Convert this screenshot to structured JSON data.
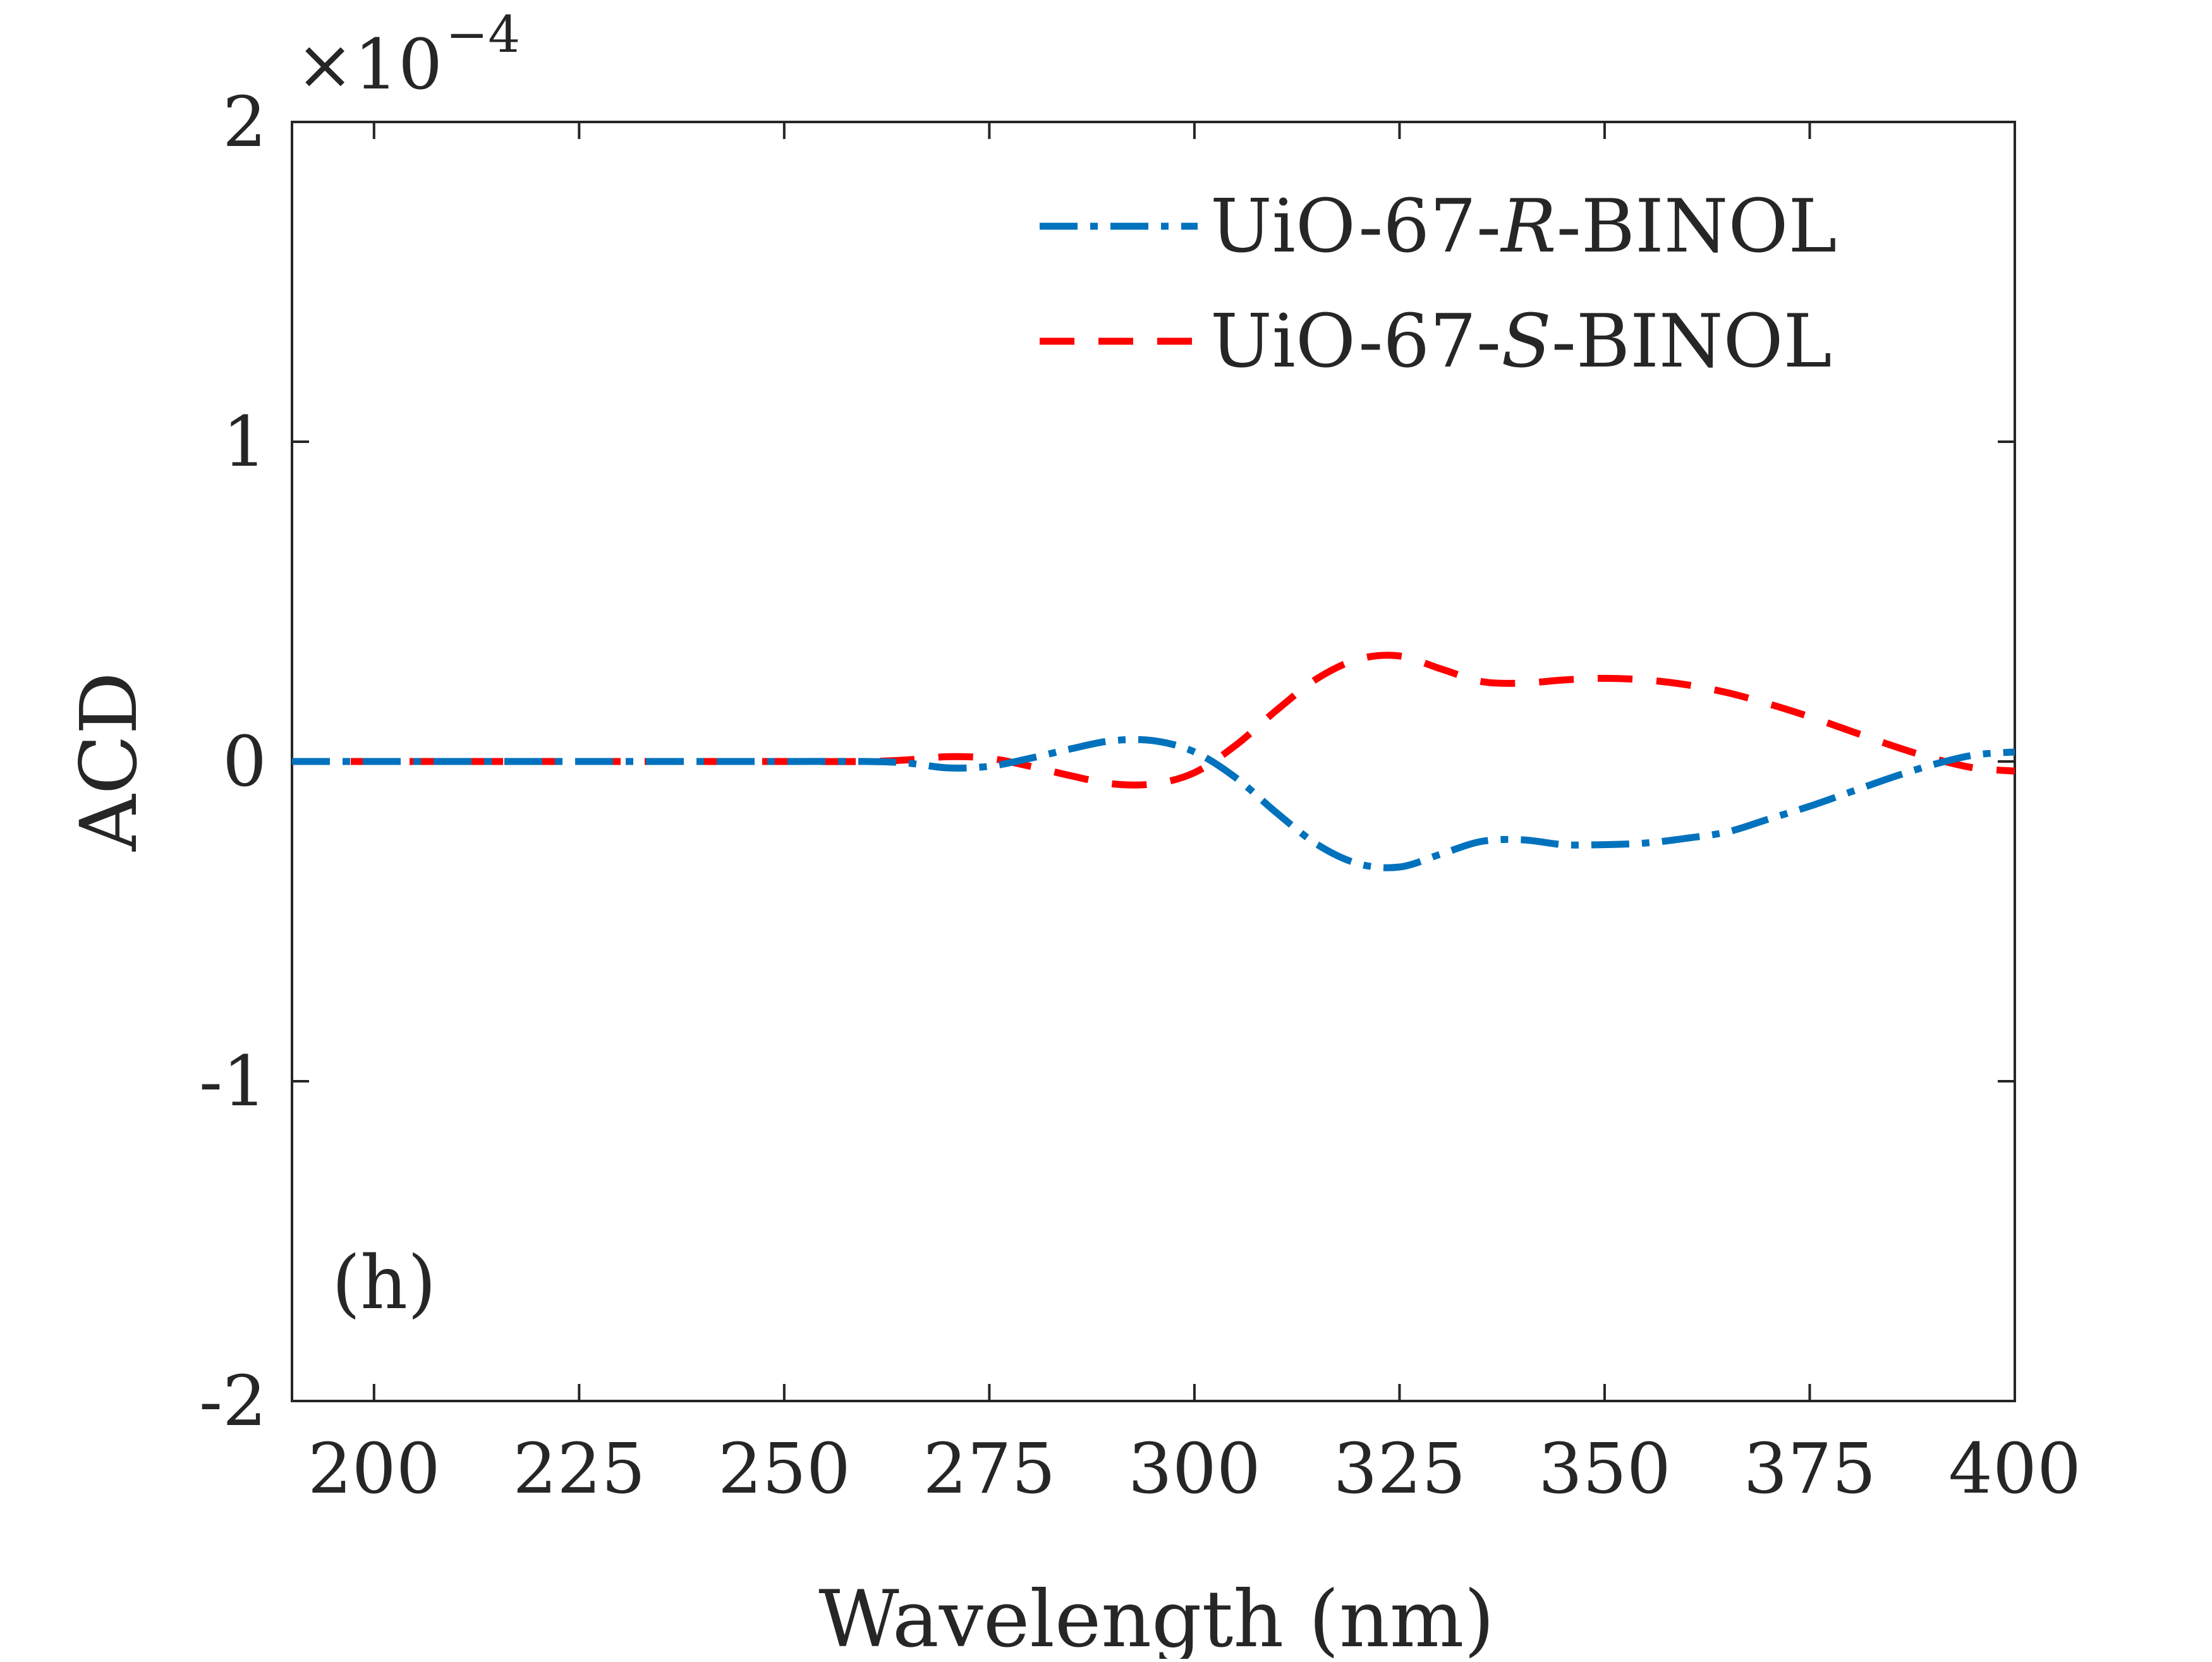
{
  "chart_data": {
    "type": "line",
    "title": "",
    "xlabel": "Wavelength (nm)",
    "ylabel": "ACD",
    "xlim": [
      190,
      400
    ],
    "ylim": [
      -2,
      2
    ],
    "y_multiplier": {
      "base": "×10",
      "exponent": "−4"
    },
    "x_ticks": [
      200,
      225,
      250,
      275,
      300,
      325,
      350,
      375,
      400
    ],
    "x_tick_labels": [
      "200",
      "225",
      "250",
      "275",
      "300",
      "325",
      "350",
      "375",
      "400"
    ],
    "y_ticks": [
      -2,
      -1,
      0,
      1,
      2
    ],
    "y_tick_labels": [
      "-2",
      "-1",
      "0",
      "1",
      "2"
    ],
    "grid": false,
    "legend_position": "top-right",
    "annotation": "(h)",
    "series": [
      {
        "name": "UiO-67-R-BINOL",
        "legend_prefix": "UiO-67-",
        "legend_italic": "R",
        "legend_suffix": "-BINOL",
        "color": "#0072BD",
        "dash": "dash-dot",
        "x": [
          190,
          200,
          210,
          220,
          230,
          240,
          250,
          260,
          265,
          270,
          275,
          280,
          285,
          290,
          295,
          300,
          305,
          310,
          315,
          320,
          325,
          330,
          335,
          340,
          345,
          350,
          355,
          360,
          365,
          370,
          375,
          380,
          385,
          390,
          395,
          400
        ],
        "y": [
          0,
          0,
          0,
          0,
          0,
          0,
          0,
          0,
          -0.005,
          -0.02,
          -0.015,
          0.01,
          0.04,
          0.065,
          0.065,
          0.03,
          -0.05,
          -0.16,
          -0.26,
          -0.32,
          -0.33,
          -0.29,
          -0.25,
          -0.245,
          -0.26,
          -0.26,
          -0.255,
          -0.24,
          -0.22,
          -0.18,
          -0.14,
          -0.095,
          -0.05,
          -0.01,
          0.02,
          0.03
        ]
      },
      {
        "name": "UiO-67-S-BINOL",
        "legend_prefix": "UiO-67-",
        "legend_italic": "S",
        "legend_suffix": "-BINOL",
        "color": "#FF0000",
        "dash": "dashed",
        "x": [
          190,
          200,
          210,
          220,
          230,
          240,
          250,
          260,
          265,
          270,
          275,
          280,
          285,
          290,
          295,
          300,
          305,
          310,
          315,
          320,
          325,
          330,
          335,
          340,
          345,
          350,
          355,
          360,
          365,
          370,
          375,
          380,
          385,
          390,
          395,
          400
        ],
        "y": [
          0,
          0,
          0,
          0,
          0,
          0,
          0,
          0,
          0.005,
          0.015,
          0.01,
          -0.015,
          -0.045,
          -0.07,
          -0.07,
          -0.035,
          0.05,
          0.16,
          0.26,
          0.32,
          0.33,
          0.29,
          0.25,
          0.245,
          0.255,
          0.26,
          0.255,
          0.24,
          0.215,
          0.18,
          0.14,
          0.095,
          0.05,
          0.01,
          -0.02,
          -0.03
        ]
      }
    ]
  }
}
